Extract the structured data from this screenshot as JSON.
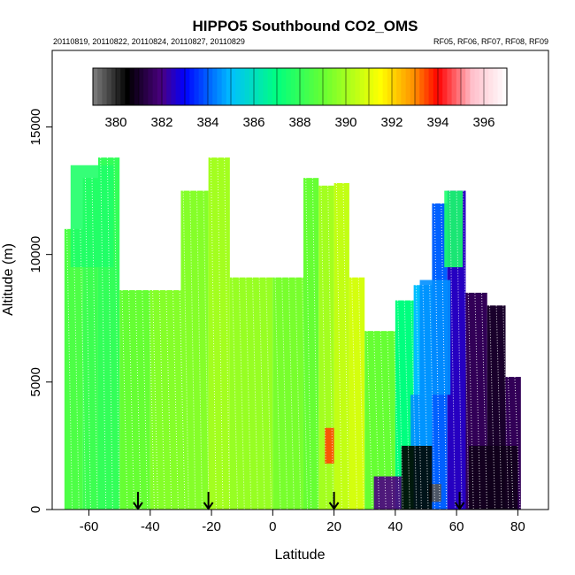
{
  "chart_data": {
    "type": "heatmap",
    "title": "HIPPO5 Southbound CO2_OMS",
    "subtitle_left": "20110819, 20110822, 20110824, 20110827, 20110829",
    "subtitle_right": "RF05, RF06, RF07, RF08, RF09",
    "xlabel": "Latitude",
    "ylabel": "Altitude (m)",
    "xlim": [
      -72,
      90
    ],
    "ylim": [
      0,
      18000
    ],
    "x_ticks": [
      -60,
      -40,
      -20,
      0,
      20,
      40,
      60,
      80
    ],
    "y_ticks": [
      0,
      5000,
      10000,
      15000
    ],
    "colorbar": {
      "range": [
        379,
        397
      ],
      "ticks": [
        380,
        382,
        384,
        386,
        388,
        390,
        392,
        394,
        396
      ],
      "colors": [
        "#808080",
        "#000000",
        "#4b0082",
        "#0000ff",
        "#00bfff",
        "#00ff7f",
        "#66ff33",
        "#ffff00",
        "#ff8c00",
        "#ff0000",
        "#ffc0cb",
        "#ffffff"
      ],
      "stops": [
        379,
        380.5,
        382,
        383,
        385,
        387,
        389,
        391.5,
        393,
        394,
        395.5,
        397
      ]
    },
    "arrows_latitude": [
      -44,
      -21,
      20,
      61
    ],
    "profiles": [
      {
        "lat_min": -68,
        "lat_max": -62,
        "alt_top": 11000,
        "co2": 388.5
      },
      {
        "lat_min": -62,
        "lat_max": -57,
        "alt_top": 13000,
        "co2": 388.2
      },
      {
        "lat_min": -57,
        "lat_max": -50,
        "alt_top": 13800,
        "co2": 388.0
      },
      {
        "lat_min": -50,
        "lat_max": -40,
        "alt_top": 8600,
        "co2": 389.0
      },
      {
        "lat_min": -40,
        "lat_max": -30,
        "alt_top": 8600,
        "co2": 389.5
      },
      {
        "lat_min": -30,
        "lat_max": -21,
        "alt_top": 12500,
        "co2": 389.5
      },
      {
        "lat_min": -21,
        "lat_max": -14,
        "alt_top": 13800,
        "co2": 390.0
      },
      {
        "lat_min": -14,
        "lat_max": 0,
        "alt_top": 9100,
        "co2": 389.8
      },
      {
        "lat_min": 0,
        "lat_max": 10,
        "alt_top": 9100,
        "co2": 389.3
      },
      {
        "lat_min": 10,
        "lat_max": 15,
        "alt_top": 13000,
        "co2": 389.0
      },
      {
        "lat_min": 15,
        "lat_max": 20,
        "alt_top": 12700,
        "co2": 390.0
      },
      {
        "lat_min": 20,
        "lat_max": 25,
        "alt_top": 12800,
        "co2": 390.5
      },
      {
        "lat_min": 25,
        "lat_max": 30,
        "alt_top": 9100,
        "co2": 390.8
      },
      {
        "lat_min": 30,
        "lat_max": 40,
        "alt_top": 7000,
        "co2": 389.0
      },
      {
        "lat_min": 40,
        "lat_max": 46,
        "alt_top": 8200,
        "co2": 387.0
      },
      {
        "lat_min": 46,
        "lat_max": 52,
        "alt_top": 8800,
        "co2": 385.0
      },
      {
        "lat_min": 52,
        "lat_max": 57,
        "alt_top": 12000,
        "co2": 384.0
      },
      {
        "lat_min": 57,
        "lat_max": 63,
        "alt_top": 12500,
        "co2": 382.5
      },
      {
        "lat_min": 63,
        "lat_max": 70,
        "alt_top": 8500,
        "co2": 381.5
      },
      {
        "lat_min": 70,
        "lat_max": 76,
        "alt_top": 8000,
        "co2": 381.0
      },
      {
        "lat_min": 76,
        "lat_max": 81,
        "alt_top": 5200,
        "co2": 381.5
      }
    ],
    "features": [
      {
        "lat_min": -66,
        "lat_max": -52,
        "alt_min": 9500,
        "alt_max": 13500,
        "co2": 387.6
      },
      {
        "lat_min": 17,
        "lat_max": 20,
        "alt_min": 1800,
        "alt_max": 3200,
        "co2": 393.5
      },
      {
        "lat_min": 51,
        "lat_max": 55,
        "alt_min": 300,
        "alt_max": 1000,
        "co2": 379.5
      },
      {
        "lat_min": 33,
        "lat_max": 42,
        "alt_min": 0,
        "alt_max": 1300,
        "co2": 382.0
      },
      {
        "lat_min": 42,
        "lat_max": 52,
        "alt_min": 0,
        "alt_max": 2500,
        "co2": 380.5
      },
      {
        "lat_min": 48,
        "lat_max": 58,
        "alt_min": 4500,
        "alt_max": 9000,
        "co2": 384.5
      },
      {
        "lat_min": 64,
        "lat_max": 80,
        "alt_min": 0,
        "alt_max": 2500,
        "co2": 380.8
      },
      {
        "lat_min": 56,
        "lat_max": 62,
        "alt_min": 9500,
        "alt_max": 12500,
        "co2": 387.5
      },
      {
        "lat_min": 45,
        "lat_max": 52,
        "alt_min": 2500,
        "alt_max": 4500,
        "co2": 384.5
      }
    ]
  }
}
